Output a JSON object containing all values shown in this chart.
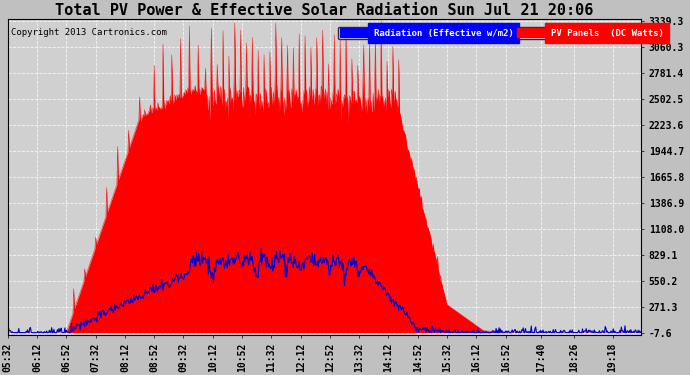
{
  "title": "Total PV Power & Effective Solar Radiation Sun Jul 21 20:06",
  "copyright": "Copyright 2013 Cartronics.com",
  "legend_radiation": "Radiation (Effective w/m2)",
  "legend_pv": "PV Panels  (DC Watts)",
  "yticks": [
    3339.3,
    3060.3,
    2781.4,
    2502.5,
    2223.6,
    1944.7,
    1665.8,
    1386.9,
    1108.0,
    829.1,
    550.2,
    271.3,
    -7.6
  ],
  "ymin": -7.6,
  "ymax": 3339.3,
  "bg_color": "#c0c0c0",
  "plot_bg_color": "#d0d0d0",
  "red_color": "#ff0000",
  "blue_color": "#0000cc",
  "title_font_size": 11,
  "tick_font_size": 7
}
